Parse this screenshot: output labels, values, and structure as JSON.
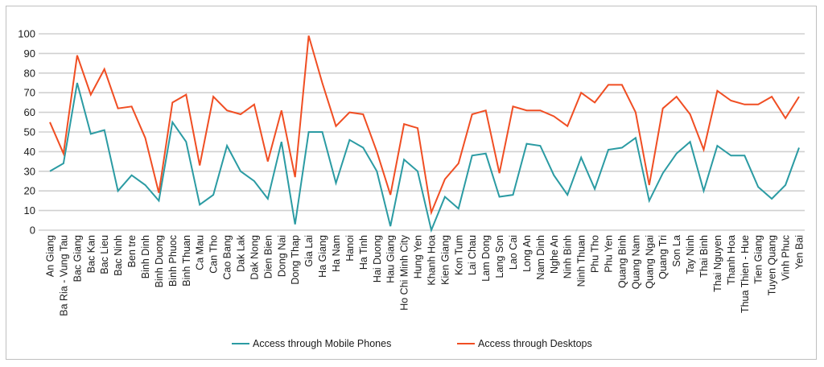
{
  "chart_data": {
    "type": "line",
    "title": "",
    "xlabel": "",
    "ylabel": "",
    "ylim": [
      0,
      100
    ],
    "yticks": [
      0,
      10,
      20,
      30,
      40,
      50,
      60,
      70,
      80,
      90,
      100
    ],
    "grid": true,
    "legend": "bottom",
    "categories": [
      "An Giang",
      "Ba Ria - Vung Tau",
      "Bac Giang",
      "Bac Kan",
      "Bac Lieu",
      "Bac Ninh",
      "Ben tre",
      "Binh Dinh",
      "Binh Duong",
      "Binh Phuoc",
      "Binh Thuan",
      "Ca Mau",
      "Can Tho",
      "Cao Bang",
      "Dak Lak",
      "Dak Nong",
      "Dien Bien",
      "Dong Nai",
      "Dong Thap",
      "Gia Lai",
      "Ha Giang",
      "Ha Nam",
      "Hanoi",
      "Ha Tinh",
      "Hai Duong",
      "Hau Giang",
      "Ho Chi Minh City",
      "Hung Yen",
      "Khanh Hoa",
      "Kien Giang",
      "Kon Tum",
      "Lai Chau",
      "Lam Dong",
      "Lang Son",
      "Lao Cai",
      "Long An",
      "Nam Dinh",
      "Nghe An",
      "Ninh Binh",
      "Ninh Thuan",
      "Phu Tho",
      "Phu Yen",
      "Quang Binh",
      "Quang Nam",
      "Quang Ngai",
      "Quang Tri",
      "Son La",
      "Tay Ninh",
      "Thai Binh",
      "Thai Nguyen",
      "Thanh Hoa",
      "Thua Thien - Hue",
      "Tien Giang",
      "Tuyen Quang",
      "Vinh Phuc",
      "Yen Bai"
    ],
    "series": [
      {
        "name": "Access through Mobile Phones",
        "color": "#2b9ba3",
        "values": [
          30,
          34,
          75,
          49,
          51,
          20,
          28,
          23,
          15,
          55,
          45,
          13,
          18,
          43,
          30,
          25,
          16,
          45,
          3,
          50,
          50,
          24,
          46,
          42,
          30,
          2,
          36,
          30,
          0,
          17,
          11,
          38,
          39,
          17,
          18,
          44,
          43,
          28,
          18,
          37,
          21,
          41,
          42,
          47,
          15,
          29,
          39,
          45,
          20,
          43,
          38,
          38,
          22,
          16,
          23,
          42
        ]
      },
      {
        "name": "Access through Desktops",
        "color": "#f04e23",
        "values": [
          55,
          39,
          89,
          69,
          82,
          62,
          63,
          47,
          19,
          65,
          69,
          33,
          68,
          61,
          59,
          64,
          35,
          61,
          27,
          99,
          75,
          53,
          60,
          59,
          40,
          18,
          54,
          52,
          9,
          26,
          34,
          59,
          61,
          29,
          63,
          61,
          61,
          58,
          53,
          70,
          65,
          74,
          74,
          60,
          23,
          62,
          68,
          59,
          41,
          71,
          66,
          64,
          64,
          68,
          57,
          68
        ]
      }
    ]
  }
}
